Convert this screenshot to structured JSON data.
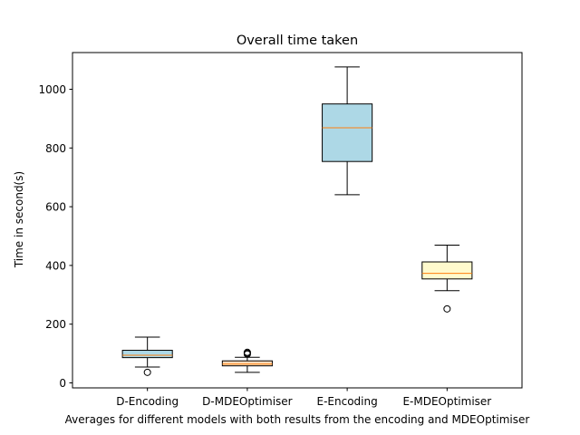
{
  "chart_data": {
    "type": "box",
    "title": "Overall time taken",
    "xlabel": "Averages for different models with both results from the encoding and MDEOptimiser",
    "ylabel": "Time in second(s)",
    "ylim": [
      -17,
      1125
    ],
    "yticks": [
      0,
      200,
      400,
      600,
      800,
      1000
    ],
    "grid": false,
    "categories": [
      "D-Encoding",
      "D-MDEOptimiser",
      "E-Encoding",
      "E-MDEOptimiser"
    ],
    "boxes": [
      {
        "whislo": 54,
        "q1": 86,
        "med": 94,
        "q3": 111,
        "whishi": 156,
        "fliers": [
          36
        ],
        "fill": "#add8e6"
      },
      {
        "whislo": 36,
        "q1": 58,
        "med": 64,
        "q3": 75,
        "whishi": 87,
        "fliers": [
          98,
          101,
          104
        ],
        "fill": "#ffdab9"
      },
      {
        "whislo": 641,
        "q1": 754,
        "med": 869,
        "q3": 950,
        "whishi": 1076,
        "fliers": [],
        "fill": "#add8e6"
      },
      {
        "whislo": 314,
        "q1": 354,
        "med": 373,
        "q3": 412,
        "whishi": 469,
        "fliers": [
          252
        ],
        "fill": "#fffacd"
      }
    ],
    "median_color": "#ff7f0e"
  }
}
